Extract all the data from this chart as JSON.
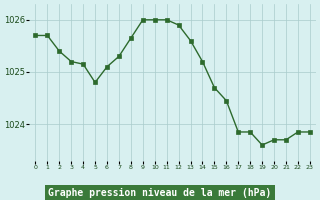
{
  "hours": [
    0,
    1,
    2,
    3,
    4,
    5,
    6,
    7,
    8,
    9,
    10,
    11,
    12,
    13,
    14,
    15,
    16,
    17,
    18,
    19,
    20,
    21,
    22,
    23
  ],
  "pressure": [
    1025.7,
    1025.7,
    1025.4,
    1025.2,
    1025.15,
    1024.8,
    1025.1,
    1025.3,
    1025.65,
    1026.0,
    1026.0,
    1026.0,
    1025.9,
    1025.6,
    1025.2,
    1024.7,
    1024.45,
    1023.85,
    1023.85,
    1023.6,
    1023.7,
    1023.7,
    1023.85,
    1023.85
  ],
  "line_color": "#2d6a2d",
  "marker_color": "#2d6a2d",
  "bg_color": "#d8f0f0",
  "grid_color": "#aacccc",
  "xlabel": "Graphe pression niveau de la mer (hPa)",
  "xlabel_fontsize": 7,
  "yticks": [
    1024,
    1025,
    1026
  ],
  "ylim": [
    1023.3,
    1026.3
  ],
  "xlim": [
    -0.5,
    23.5
  ],
  "tick_label_color": "#1a4a1a",
  "bottom_bar_color": "#3a7a3a"
}
